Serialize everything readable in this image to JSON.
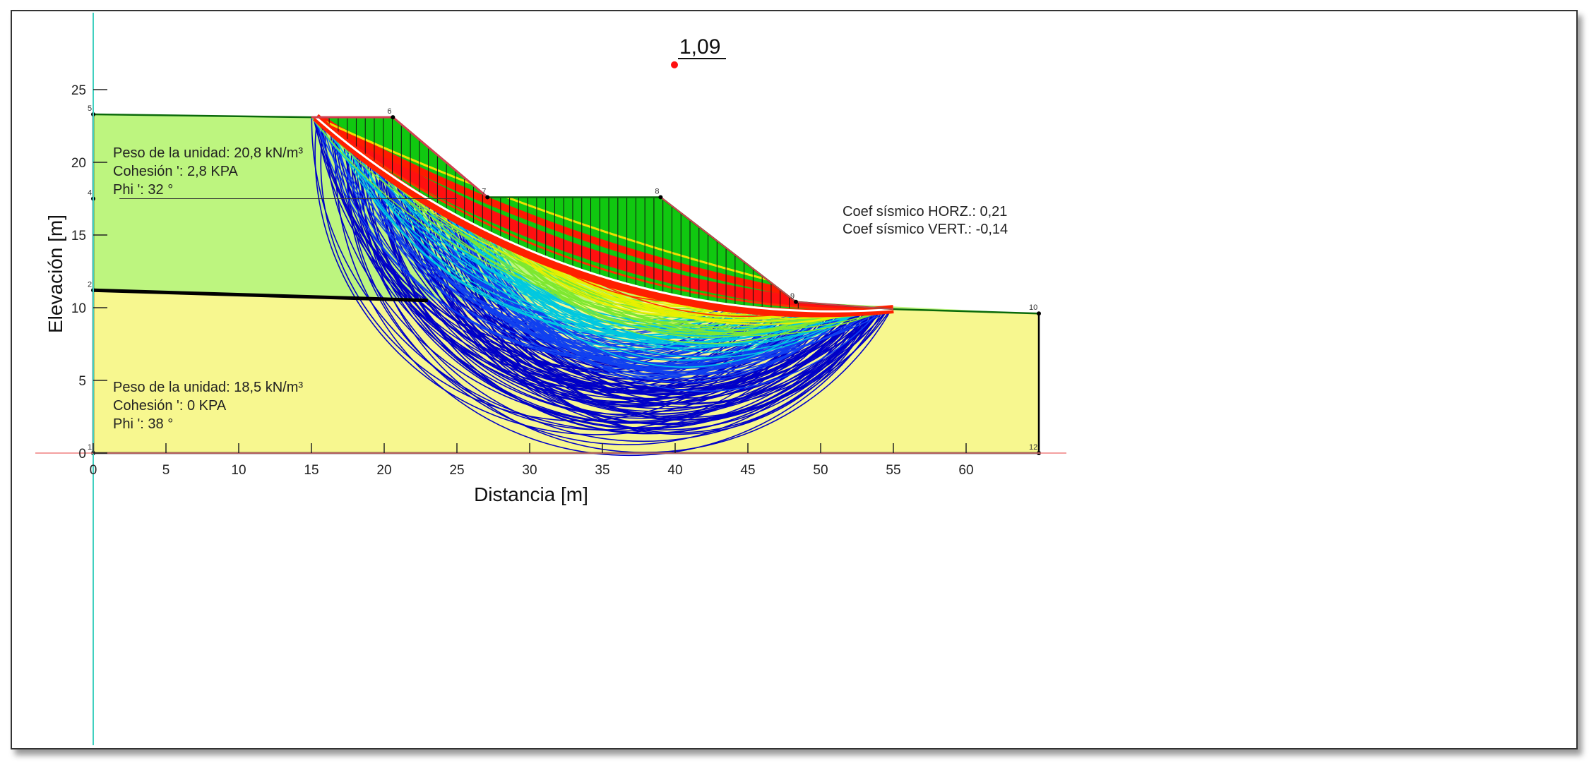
{
  "chart_data": {
    "type": "diagram",
    "title": "",
    "xlabel": "Distancia [m]",
    "ylabel": "Elevación [m]",
    "xlim": [
      0,
      65
    ],
    "ylim": [
      0,
      25
    ],
    "x_ticks": [
      "0",
      "5",
      "10",
      "15",
      "20",
      "25",
      "30",
      "35",
      "40",
      "45",
      "50",
      "55",
      "60"
    ],
    "y_ticks": [
      "0",
      "5",
      "10",
      "15",
      "20",
      "25"
    ],
    "factor_of_safety": {
      "label": "1,09",
      "x": 40,
      "y": 26.9
    },
    "ground_profile": [
      [
        0,
        23.3
      ],
      [
        15,
        23.1
      ],
      [
        20.6,
        23.1
      ],
      [
        27.1,
        17.6
      ],
      [
        39,
        17.6
      ],
      [
        48.3,
        10.4
      ],
      [
        55,
        9.9
      ],
      [
        65,
        9.6
      ]
    ],
    "points": [
      {
        "label": "1",
        "x": 0,
        "y": 0
      },
      {
        "label": "2",
        "x": 0,
        "y": 11.2
      },
      {
        "label": "4",
        "x": 0,
        "y": 17.5
      },
      {
        "label": "5",
        "x": 0,
        "y": 23.3
      },
      {
        "label": "6",
        "x": 20.6,
        "y": 23.1
      },
      {
        "label": "7",
        "x": 27.1,
        "y": 17.6
      },
      {
        "label": "8",
        "x": 39,
        "y": 17.6
      },
      {
        "label": "9",
        "x": 48.3,
        "y": 10.4
      },
      {
        "label": "10",
        "x": 65,
        "y": 9.6
      },
      {
        "label": "12",
        "x": 65,
        "y": 0
      }
    ],
    "layer_interface": [
      [
        0,
        11.2
      ],
      [
        23,
        10.5
      ]
    ],
    "water_line": [
      [
        1.8,
        17.5
      ],
      [
        25,
        17.5
      ]
    ],
    "critical_surface": {
      "entry": [
        15.3,
        23.1
      ],
      "exit": [
        55,
        9.9
      ],
      "sagitta": 4.2
    },
    "materials": [
      {
        "name": "upper",
        "color": "#bdf57f",
        "lines": [
          "Peso de la unidad: 20,8 kN/m³",
          "Cohesión ': 2,8 KPA",
          "Phi ': 32 °"
        ]
      },
      {
        "name": "lower",
        "color": "#f7f78f",
        "lines": [
          "Peso de la unidad: 18,5 kN/m³",
          "Cohesión ': 0 KPA",
          "Phi ': 38 °"
        ]
      }
    ],
    "seismic": [
      "Coef sísmico HORZ.: 0,21",
      "Coef sísmico VERT.: -0,14"
    ]
  }
}
